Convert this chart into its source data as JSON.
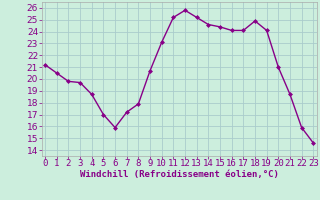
{
  "x": [
    0,
    1,
    2,
    3,
    4,
    5,
    6,
    7,
    8,
    9,
    10,
    11,
    12,
    13,
    14,
    15,
    16,
    17,
    18,
    19,
    20,
    21,
    22,
    23
  ],
  "y": [
    21.2,
    20.5,
    19.8,
    19.7,
    18.7,
    17.0,
    15.9,
    17.2,
    17.9,
    20.7,
    23.1,
    25.2,
    25.8,
    25.2,
    24.6,
    24.4,
    24.1,
    24.1,
    24.9,
    24.1,
    21.0,
    18.7,
    15.9,
    14.6
  ],
  "line_color": "#880088",
  "marker": "D",
  "marker_size": 2.0,
  "line_width": 1.0,
  "bg_color": "#cceedd",
  "grid_color": "#aacccc",
  "xlabel": "Windchill (Refroidissement éolien,°C)",
  "xlabel_fontsize": 6.5,
  "tick_fontsize": 6.5,
  "ylim": [
    13.5,
    26.5
  ],
  "yticks": [
    14,
    15,
    16,
    17,
    18,
    19,
    20,
    21,
    22,
    23,
    24,
    25,
    26
  ],
  "xticks": [
    0,
    1,
    2,
    3,
    4,
    5,
    6,
    7,
    8,
    9,
    10,
    11,
    12,
    13,
    14,
    15,
    16,
    17,
    18,
    19,
    20,
    21,
    22,
    23
  ],
  "xtick_labels": [
    "0",
    "1",
    "2",
    "3",
    "4",
    "5",
    "6",
    "7",
    "8",
    "9",
    "10",
    "11",
    "12",
    "13",
    "14",
    "15",
    "16",
    "17",
    "18",
    "19",
    "20",
    "21",
    "22",
    "23"
  ],
  "xlim": [
    -0.3,
    23.3
  ]
}
